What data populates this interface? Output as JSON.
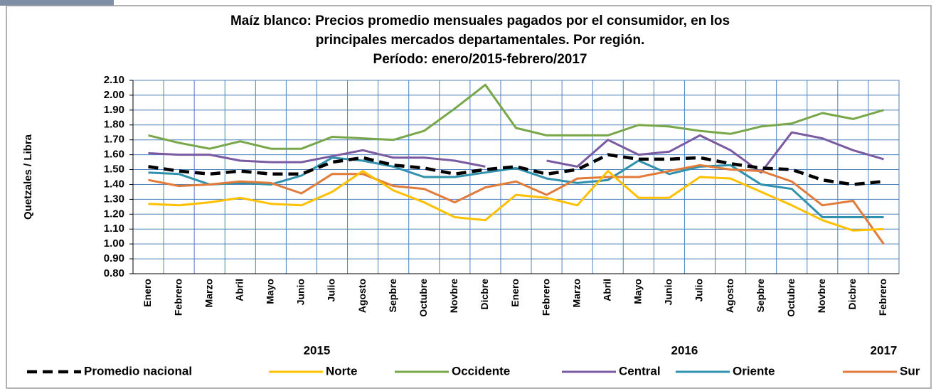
{
  "chart_data": {
    "type": "line",
    "title": [
      "Maíz blanco: Precios promedio mensuales pagados por el consumidor, en los",
      "principales mercados departamentales. Por región.",
      "Período: enero/2015-febrero/2017"
    ],
    "y_label": "Quetzales / Libra",
    "categories": [
      "Enero",
      "Febrero",
      "Marzo",
      "Abril",
      "Mayo",
      "Junio",
      "Julio",
      "Agosto",
      "Sepbre",
      "Octubre",
      "Novbre",
      "Dicbre",
      "Enero",
      "Febrero",
      "Marzo",
      "Abril",
      "Mayo",
      "Junio",
      "Julio",
      "Agosto",
      "Sepbre",
      "Octubre",
      "Novbre",
      "Dicbre",
      "Febrero"
    ],
    "year_labels": [
      {
        "label": "2015",
        "start": 0,
        "end": 11
      },
      {
        "label": "2016",
        "start": 12,
        "end": 23
      },
      {
        "label": "2017",
        "start": 24,
        "end": 24
      }
    ],
    "ylim": [
      0.8,
      2.1
    ],
    "yticks": [
      {
        "value": 0.8,
        "label": "0.80"
      },
      {
        "value": 0.9,
        "label": "0.90"
      },
      {
        "value": 1,
        "label": "1.00"
      },
      {
        "value": 1.1,
        "label": "1.10"
      },
      {
        "value": 1.2,
        "label": "1.20"
      },
      {
        "value": 1.3,
        "label": "1.30"
      },
      {
        "value": 1.4,
        "label": "1.40"
      },
      {
        "value": 1.5,
        "label": "1.50"
      },
      {
        "value": 1.6,
        "label": "1.60"
      },
      {
        "value": 1.7,
        "label": "1.70"
      },
      {
        "value": 1.8,
        "label": "1.80"
      },
      {
        "value": 1.9,
        "label": "1.90"
      },
      {
        "value": 2,
        "label": "2.00"
      },
      {
        "value": 2.1,
        "label": "2.10"
      }
    ],
    "grid": true,
    "legend": "bottom",
    "series": [
      {
        "name": "Promedio nacional",
        "color": "#000000",
        "dashed": true,
        "values": [
          1.52,
          1.49,
          1.47,
          1.49,
          1.47,
          1.47,
          1.55,
          1.58,
          1.53,
          1.51,
          1.47,
          1.5,
          1.52,
          1.47,
          1.5,
          1.6,
          1.57,
          1.57,
          1.58,
          1.54,
          1.51,
          1.5,
          1.43,
          1.4,
          1.42
        ]
      },
      {
        "name": "Norte",
        "color": "#ffc000",
        "values": [
          1.27,
          1.26,
          1.28,
          1.31,
          1.27,
          1.26,
          1.35,
          1.49,
          1.36,
          1.28,
          1.18,
          1.16,
          1.33,
          1.31,
          1.26,
          1.49,
          1.31,
          1.31,
          1.45,
          1.44,
          1.35,
          1.26,
          1.16,
          1.09,
          1.1
        ]
      },
      {
        "name": "Occidente",
        "color": "#77a748",
        "values": [
          1.73,
          1.68,
          1.64,
          1.69,
          1.64,
          1.64,
          1.72,
          1.71,
          1.7,
          1.76,
          1.91,
          2.07,
          1.78,
          1.73,
          1.73,
          1.73,
          1.8,
          1.79,
          1.76,
          1.74,
          1.79,
          1.81,
          1.88,
          1.84,
          1.9
        ]
      },
      {
        "name": "Central",
        "color": "#7a5aa1",
        "values": [
          1.61,
          1.6,
          1.6,
          1.56,
          1.55,
          1.55,
          1.59,
          1.63,
          1.58,
          1.58,
          1.56,
          1.52,
          null,
          1.56,
          1.52,
          1.7,
          1.6,
          1.62,
          1.73,
          1.63,
          1.48,
          1.75,
          1.71,
          1.63,
          1.57
        ]
      },
      {
        "name": "Oriente",
        "color": "#2f91ad",
        "values": [
          1.48,
          1.47,
          1.4,
          1.41,
          1.4,
          1.46,
          1.58,
          1.56,
          1.52,
          1.45,
          1.45,
          1.48,
          1.51,
          1.44,
          1.41,
          1.43,
          1.56,
          1.47,
          1.52,
          1.53,
          1.4,
          1.37,
          1.18,
          1.18,
          1.18
        ]
      },
      {
        "name": "Sur",
        "color": "#e07b39",
        "values": [
          1.43,
          1.39,
          1.4,
          1.42,
          1.41,
          1.34,
          1.47,
          1.47,
          1.39,
          1.37,
          1.28,
          1.38,
          1.42,
          1.33,
          1.44,
          1.45,
          1.45,
          1.49,
          1.53,
          1.5,
          1.49,
          1.42,
          1.26,
          1.29,
          1.0
        ]
      }
    ]
  }
}
